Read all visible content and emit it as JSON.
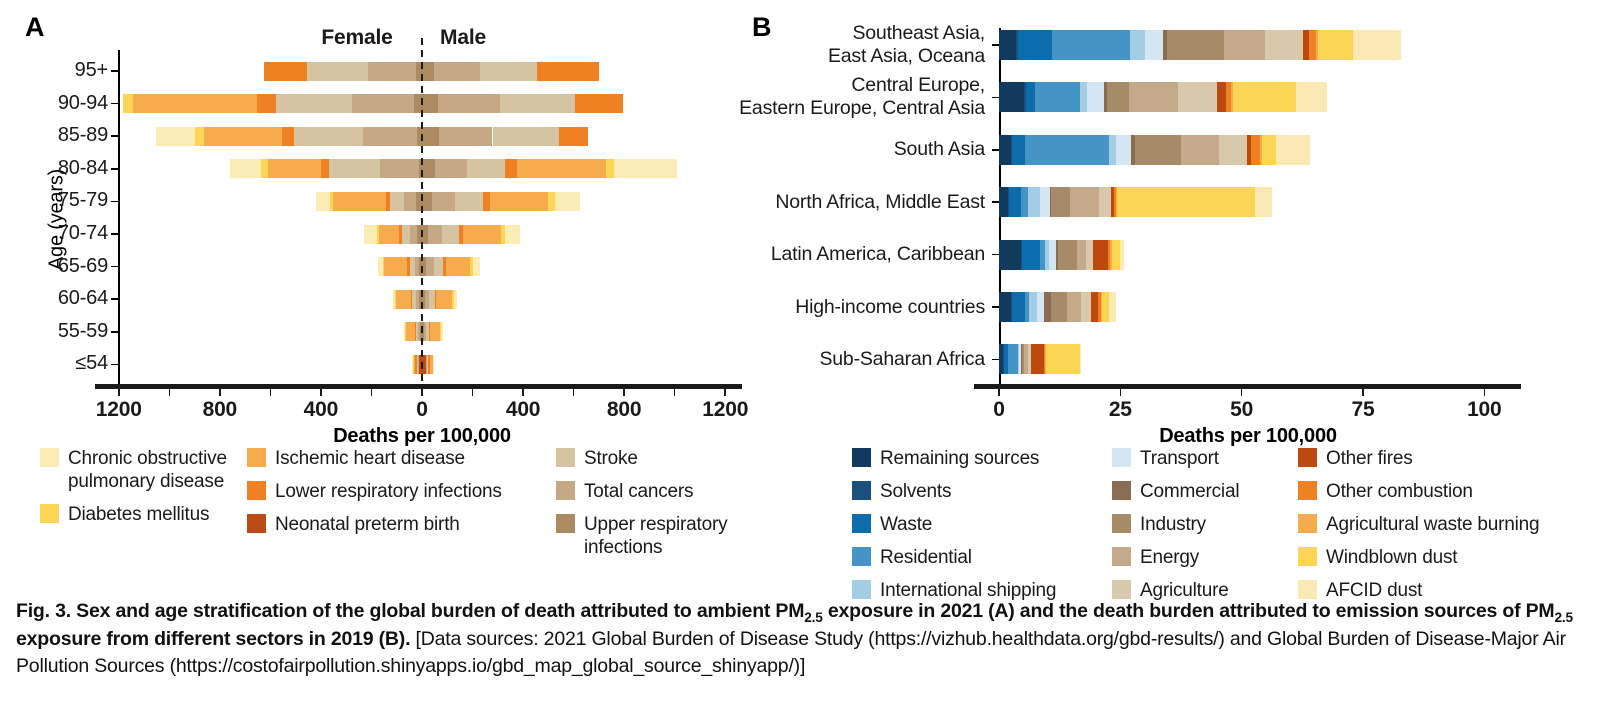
{
  "figure": {
    "panel_a_label": "A",
    "panel_b_label": "B",
    "female_label": "Female",
    "male_label": "Male",
    "age_axis_label": "Age (years)",
    "deaths_axis_label": "Deaths per 100,000"
  },
  "colors": {
    "copd": "#FBECB6",
    "diabetes": "#FBD554",
    "ihd": "#F6AC4D",
    "lri": "#F08122",
    "neonatal": "#BC4B14",
    "stroke": "#D5C3A2",
    "cancers": "#C7A884",
    "uri": "#AC8B62",
    "remaining": "#12395E",
    "solvents": "#1A4F7F",
    "waste": "#0C6CAC",
    "residential": "#4495C6",
    "intl_shipping": "#A3CDE4",
    "transport": "#D4E6F2",
    "commercial": "#8A6C55",
    "industry": "#A78A67",
    "energy": "#C4A98B",
    "agriculture": "#D8C8AC",
    "other_fires": "#BD490E",
    "other_combustion": "#F08122",
    "ag_waste_burning": "#F6AC4D",
    "windblown": "#FBD554",
    "afcid": "#FBE9B4"
  },
  "chart_data": [
    {
      "type": "bar",
      "variant": "diverging_stacked_pyramid",
      "panel": "A",
      "xlabel": "Deaths per 100,000",
      "ylabel": "Age (years)",
      "xlim": [
        -1200,
        1200
      ],
      "x_tick_values": [
        -1200,
        -800,
        -400,
        0,
        400,
        800,
        1200
      ],
      "x_tick_labels": [
        "1200",
        "800",
        "400",
        "0",
        "400",
        "800",
        "1200"
      ],
      "x_minor_tick_step": 200,
      "left_series_name": "Female",
      "right_series_name": "Male",
      "categories": [
        "95+",
        "90-94",
        "85-89",
        "80-84",
        "75-79",
        "70-74",
        "65-69",
        "60-64",
        "55-59",
        "≤54"
      ],
      "cause_order": [
        "neonatal",
        "uri",
        "cancers",
        "stroke",
        "lri",
        "ihd",
        "diabetes",
        "copd"
      ],
      "cause_labels": [
        "Neonatal preterm birth",
        "Upper respiratory infections",
        "Total cancers",
        "Stroke",
        "Lower respiratory infections",
        "Ischemic heart disease",
        "Diabetes mellitus",
        "Chronic obstructive pulmonary disease"
      ],
      "female_values": [
        [
          0,
          25,
          190,
          240,
          170,
          0,
          0,
          0
        ],
        [
          0,
          33,
          245,
          300,
          75,
          490,
          42,
          0
        ],
        [
          0,
          20,
          215,
          273,
          46,
          310,
          35,
          155
        ],
        [
          0,
          13,
          155,
          200,
          33,
          210,
          27,
          120
        ],
        [
          0,
          25,
          45,
          55,
          17,
          210,
          12,
          55
        ],
        [
          0,
          20,
          26,
          33,
          13,
          80,
          8,
          48
        ],
        [
          0,
          11,
          17,
          21,
          10,
          90,
          6,
          18
        ],
        [
          0,
          10,
          13,
          17,
          5,
          58,
          4,
          7
        ],
        [
          0,
          7,
          7,
          10,
          3,
          37,
          3,
          3
        ],
        [
          12,
          2,
          3,
          2,
          10,
          7,
          1,
          1
        ]
      ],
      "male_values": [
        [
          0,
          46,
          185,
          225,
          246,
          0,
          0,
          0
        ],
        [
          0,
          62,
          245,
          300,
          188,
          0,
          0,
          0
        ],
        [
          0,
          69,
          210,
          265,
          113,
          0,
          0,
          0
        ],
        [
          0,
          53,
          124,
          150,
          49,
          352,
          31,
          251
        ],
        [
          0,
          40,
          90,
          110,
          30,
          230,
          25,
          102
        ],
        [
          0,
          25,
          55,
          65,
          18,
          150,
          16,
          60
        ],
        [
          0,
          15,
          32,
          38,
          10,
          95,
          11,
          30
        ],
        [
          0,
          10,
          18,
          22,
          6,
          62,
          7,
          15
        ],
        [
          0,
          6,
          10,
          12,
          4,
          40,
          4,
          8
        ],
        [
          14,
          2,
          3,
          4,
          10,
          9,
          2,
          1
        ]
      ]
    },
    {
      "type": "bar",
      "variant": "stacked_horizontal",
      "panel": "B",
      "xlabel": "Deaths per 100,000",
      "xlim": [
        0,
        100
      ],
      "x_tick_values": [
        0,
        25,
        50,
        75,
        100
      ],
      "x_tick_labels": [
        "0",
        "25",
        "50",
        "75",
        "100"
      ],
      "categories": [
        [
          "Southeast Asia,",
          "East Asia, Oceana"
        ],
        [
          "Central Europe,",
          "Eastern Europe, Central Asia"
        ],
        [
          "South Asia"
        ],
        [
          "North Africa, Middle East"
        ],
        [
          "Latin America, Caribbean"
        ],
        [
          "High-income countries"
        ],
        [
          "Sub-Saharan Africa"
        ]
      ],
      "source_order": [
        "remaining",
        "solvents",
        "waste",
        "residential",
        "intl_shipping",
        "transport",
        "commercial",
        "industry",
        "energy",
        "agriculture",
        "other_fires",
        "other_combustion",
        "ag_waste_burning",
        "windblown",
        "afcid"
      ],
      "source_labels": [
        "Remaining sources",
        "Solvents",
        "Waste",
        "Residential",
        "International shipping",
        "Transport",
        "Commercial",
        "Industry",
        "Energy",
        "Agriculture",
        "Other fires",
        "Other combustion",
        "Agricultural waste burning",
        "Windblown dust",
        "AFCID dust"
      ],
      "values": [
        [
          3.5,
          0.5,
          7.0,
          16.0,
          3.0,
          3.7,
          0.9,
          11.8,
          8.4,
          7.9,
          1.2,
          1.5,
          0.4,
          7.2,
          9.9
        ],
        [
          5.1,
          0.4,
          2.0,
          9.1,
          1.5,
          3.6,
          0.5,
          4.6,
          10.0,
          8.1,
          1.8,
          1.2,
          0.3,
          13.0,
          6.3
        ],
        [
          2.4,
          0.3,
          2.7,
          17.2,
          1.5,
          3.0,
          0.9,
          9.6,
          7.8,
          5.7,
          0.9,
          1.8,
          0.3,
          3.0,
          6.9
        ],
        [
          1.8,
          0.2,
          2.5,
          1.5,
          2.4,
          2.1,
          0.3,
          3.9,
          6.0,
          2.4,
          0.6,
          0.4,
          0.2,
          28.4,
          3.6
        ],
        [
          4.5,
          0.3,
          3.6,
          1.0,
          1.0,
          1.4,
          0.3,
          4.0,
          1.8,
          1.5,
          3.0,
          0.5,
          0.3,
          1.7,
          0.9
        ],
        [
          2.4,
          0.3,
          2.7,
          0.8,
          1.6,
          1.5,
          1.5,
          3.3,
          2.7,
          2.1,
          1.5,
          0.6,
          0.3,
          1.3,
          1.5
        ],
        [
          0.9,
          0.1,
          0.8,
          2.1,
          0.3,
          0.3,
          0.2,
          0.4,
          0.9,
          0.6,
          2.7,
          0.2,
          0.2,
          7.0,
          0.3
        ]
      ]
    }
  ],
  "legend_a": {
    "columns": [
      [
        {
          "color_id": "copd",
          "label_lines": [
            "Chronic obstructive",
            "pulmonary disease"
          ]
        },
        {
          "color_id": "diabetes",
          "label_lines": [
            "Diabetes mellitus"
          ]
        }
      ],
      [
        {
          "color_id": "ihd",
          "label_lines": [
            "Ischemic heart disease"
          ]
        },
        {
          "color_id": "lri",
          "label_lines": [
            "Lower respiratory infections"
          ]
        },
        {
          "color_id": "neonatal",
          "label_lines": [
            "Neonatal preterm birth"
          ]
        }
      ],
      [
        {
          "color_id": "stroke",
          "label_lines": [
            "Stroke"
          ]
        },
        {
          "color_id": "cancers",
          "label_lines": [
            "Total cancers"
          ]
        },
        {
          "color_id": "uri",
          "label_lines": [
            "Upper respiratory",
            "infections"
          ]
        }
      ]
    ]
  },
  "legend_b": {
    "columns": [
      [
        {
          "color_id": "remaining",
          "label_lines": [
            "Remaining sources"
          ]
        },
        {
          "color_id": "solvents",
          "label_lines": [
            "Solvents"
          ]
        },
        {
          "color_id": "waste",
          "label_lines": [
            "Waste"
          ]
        },
        {
          "color_id": "residential",
          "label_lines": [
            "Residential"
          ]
        },
        {
          "color_id": "intl_shipping",
          "label_lines": [
            "International shipping"
          ]
        }
      ],
      [
        {
          "color_id": "transport",
          "label_lines": [
            "Transport"
          ]
        },
        {
          "color_id": "commercial",
          "label_lines": [
            "Commercial"
          ]
        },
        {
          "color_id": "industry",
          "label_lines": [
            "Industry"
          ]
        },
        {
          "color_id": "energy",
          "label_lines": [
            "Energy"
          ]
        },
        {
          "color_id": "agriculture",
          "label_lines": [
            "Agriculture"
          ]
        }
      ],
      [
        {
          "color_id": "other_fires",
          "label_lines": [
            "Other fires"
          ]
        },
        {
          "color_id": "other_combustion",
          "label_lines": [
            "Other combustion"
          ]
        },
        {
          "color_id": "ag_waste_burning",
          "label_lines": [
            "Agricultural waste burning"
          ]
        },
        {
          "color_id": "windblown",
          "label_lines": [
            "Windblown dust"
          ]
        },
        {
          "color_id": "afcid",
          "label_lines": [
            "AFCID dust"
          ]
        }
      ]
    ]
  },
  "caption": {
    "segments": [
      {
        "text": "Fig. 3. Sex and age stratification of the global burden of death attributed to ambient PM",
        "bold": true,
        "sub": false
      },
      {
        "text": "2.5",
        "bold": true,
        "sub": true
      },
      {
        "text": " exposure in 2021 (A) and the death burden attributed to emission sources of PM",
        "bold": true,
        "sub": false
      },
      {
        "text": "2.5",
        "bold": true,
        "sub": true
      },
      {
        "text": " exposure from different sectors in 2019 (B). ",
        "bold": true,
        "sub": false
      },
      {
        "text": "[Data sources: 2021 Global Burden of Disease Study (https://vizhub.healthdata.org/gbd-results/) and Global Burden of Disease-Major Air Pollution Sources (https://costofairpollution.shinyapps.io/gbd_map_global_source_shinyapp/)]",
        "bold": false,
        "sub": false
      }
    ]
  }
}
